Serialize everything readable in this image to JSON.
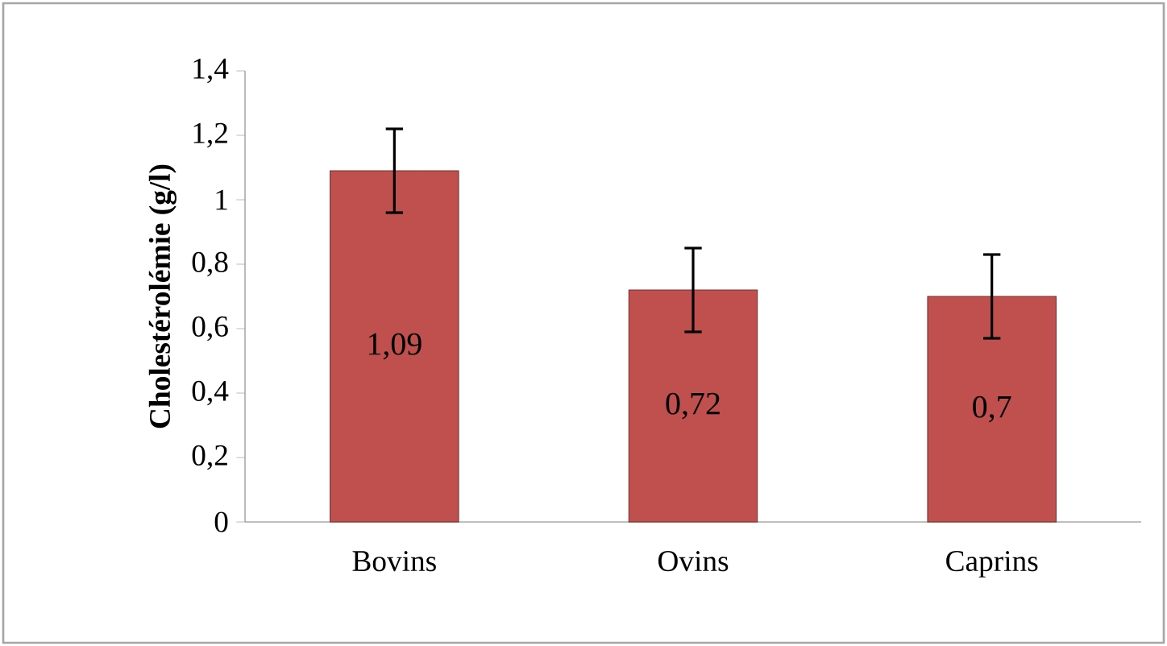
{
  "chart_data": {
    "type": "bar",
    "ylabel": "Cholestérolémie (g/l)",
    "categories": [
      "Bovins",
      "Ovins",
      "Caprins"
    ],
    "values": [
      1.09,
      0.72,
      0.7
    ],
    "errors": [
      0.13,
      0.13,
      0.13
    ],
    "value_labels": [
      "1,09",
      "0,72",
      "0,7"
    ],
    "color": "#c0504d",
    "ylim": [
      0,
      1.4
    ],
    "yticks": [
      0,
      {
        "value": 0.2,
        "label": "0,2"
      },
      {
        "value": 0.4,
        "label": "0,4"
      },
      {
        "value": 0.6,
        "label": "0,6"
      },
      {
        "value": 0.8,
        "label": "0,8"
      },
      1,
      {
        "value": 1.2,
        "label": "1,2"
      },
      {
        "value": 1.4,
        "label": "1,4"
      }
    ],
    "grid": false
  }
}
